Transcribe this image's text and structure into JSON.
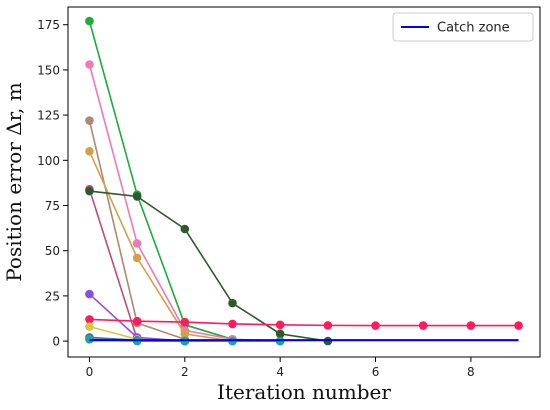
{
  "chart_data": {
    "type": "line",
    "title": "",
    "xlabel": "Iteration number",
    "ylabel": "Position error Δr, m",
    "xlim": [
      -0.45,
      9.45
    ],
    "ylim": [
      -8.8,
      184.8
    ],
    "xticks": [
      0,
      2,
      4,
      6,
      8
    ],
    "yticks": [
      0,
      25,
      50,
      75,
      100,
      125,
      150,
      175
    ],
    "legend": {
      "position": "top-right",
      "entries": [
        {
          "label": "Catch zone",
          "color": "#0000ee"
        }
      ]
    },
    "catch_zone": {
      "name": "Catch zone",
      "color": "#0000ee",
      "x": [
        0,
        9
      ],
      "y": [
        0.5,
        0.5
      ]
    },
    "series": [
      {
        "color": "#1aad3a",
        "x": [
          0,
          1,
          2,
          3,
          4
        ],
        "y": [
          177,
          81,
          9,
          1,
          0
        ]
      },
      {
        "color": "#f078b4",
        "x": [
          0,
          1,
          2,
          3
        ],
        "y": [
          153,
          54,
          6,
          1
        ]
      },
      {
        "color": "#b08870",
        "x": [
          0,
          1,
          2
        ],
        "y": [
          122,
          10,
          1
        ]
      },
      {
        "color": "#d3a04c",
        "x": [
          0,
          1,
          2,
          3
        ],
        "y": [
          105,
          46,
          4,
          0
        ]
      },
      {
        "color": "#be4c78",
        "x": [
          0,
          1,
          2
        ],
        "y": [
          84,
          1,
          0
        ]
      },
      {
        "color": "#2f5a2c",
        "x": [
          0,
          1,
          2,
          3,
          4,
          5
        ],
        "y": [
          83,
          80,
          62,
          21,
          4,
          0
        ]
      },
      {
        "color": "#8a4fe0",
        "x": [
          0,
          1,
          2
        ],
        "y": [
          26,
          2,
          0
        ]
      },
      {
        "color": "#ff1a5c",
        "x": [
          0,
          1,
          2,
          3,
          4,
          5,
          6,
          7,
          8,
          9
        ],
        "y": [
          12,
          11,
          10.5,
          9.5,
          9,
          8.7,
          8.6,
          8.6,
          8.6,
          8.6
        ]
      },
      {
        "color": "#d9c83a",
        "x": [
          0,
          1,
          2
        ],
        "y": [
          8,
          1,
          0
        ]
      },
      {
        "color": "#4a6fb0",
        "x": [
          0,
          1,
          2
        ],
        "y": [
          2,
          0.5,
          0
        ]
      },
      {
        "color": "#17a6a0",
        "x": [
          0,
          1,
          2,
          3,
          4
        ],
        "y": [
          1,
          0,
          0,
          0,
          0
        ]
      }
    ]
  }
}
